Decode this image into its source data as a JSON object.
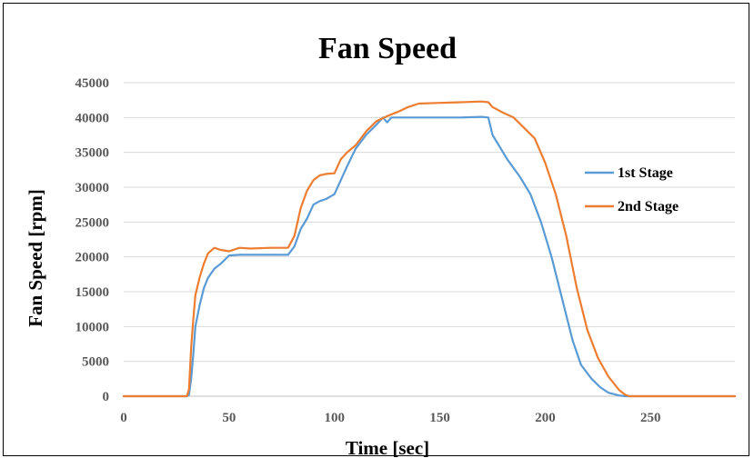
{
  "chart_data": {
    "type": "line",
    "title": "Fan Speed",
    "xlabel": "Time [sec]",
    "ylabel": "Fan Speed [rpm]",
    "xlim": [
      0,
      290
    ],
    "ylim": [
      0,
      45000
    ],
    "xticks": [
      0,
      50,
      100,
      150,
      200,
      250
    ],
    "yticks": [
      0,
      5000,
      10000,
      15000,
      20000,
      25000,
      30000,
      35000,
      40000,
      45000
    ],
    "grid": "horizontal",
    "legend_position": "right",
    "series": [
      {
        "name": "1st Stage",
        "color": "#5B9BD5",
        "x": [
          0,
          30,
          31,
          32,
          33,
          34,
          36,
          38,
          40,
          43,
          46,
          50,
          55,
          60,
          70,
          78,
          81,
          84,
          87,
          90,
          93,
          96,
          100,
          103,
          106,
          110,
          115,
          120,
          123,
          125,
          127,
          130,
          140,
          160,
          170,
          173,
          175,
          178,
          182,
          188,
          193,
          198,
          203,
          208,
          213,
          217,
          222,
          226,
          230,
          235,
          238,
          240,
          290
        ],
        "y": [
          0,
          0,
          200,
          2500,
          6000,
          10000,
          13000,
          15500,
          17000,
          18300,
          19000,
          20200,
          20300,
          20300,
          20300,
          20300,
          21500,
          24000,
          25500,
          27500,
          28000,
          28300,
          29000,
          31000,
          33000,
          35500,
          37500,
          39000,
          40000,
          39300,
          40000,
          40000,
          40000,
          40000,
          40100,
          40000,
          37500,
          36000,
          34000,
          31500,
          29000,
          25000,
          20000,
          14000,
          8000,
          4500,
          2500,
          1300,
          500,
          100,
          0,
          0,
          0
        ]
      },
      {
        "name": "2nd Stage",
        "color": "#ED7D31",
        "x": [
          0,
          30,
          31,
          32,
          33,
          34,
          36,
          38,
          40,
          43,
          46,
          50,
          55,
          60,
          70,
          78,
          81,
          84,
          87,
          90,
          93,
          96,
          100,
          103,
          106,
          110,
          115,
          120,
          125,
          130,
          135,
          140,
          150,
          160,
          170,
          173,
          175,
          180,
          185,
          190,
          195,
          200,
          205,
          210,
          215,
          220,
          225,
          230,
          235,
          238,
          240,
          290
        ],
        "y": [
          0,
          0,
          1000,
          7000,
          11000,
          14500,
          17000,
          19000,
          20500,
          21300,
          21000,
          20800,
          21300,
          21200,
          21300,
          21300,
          23000,
          27000,
          29500,
          31000,
          31700,
          31900,
          32000,
          34000,
          35000,
          36000,
          38000,
          39500,
          40200,
          40800,
          41500,
          42000,
          42100,
          42200,
          42300,
          42200,
          41500,
          40700,
          40000,
          38500,
          37000,
          33500,
          29000,
          23000,
          15500,
          9500,
          5500,
          2800,
          900,
          200,
          0,
          0
        ]
      }
    ]
  }
}
